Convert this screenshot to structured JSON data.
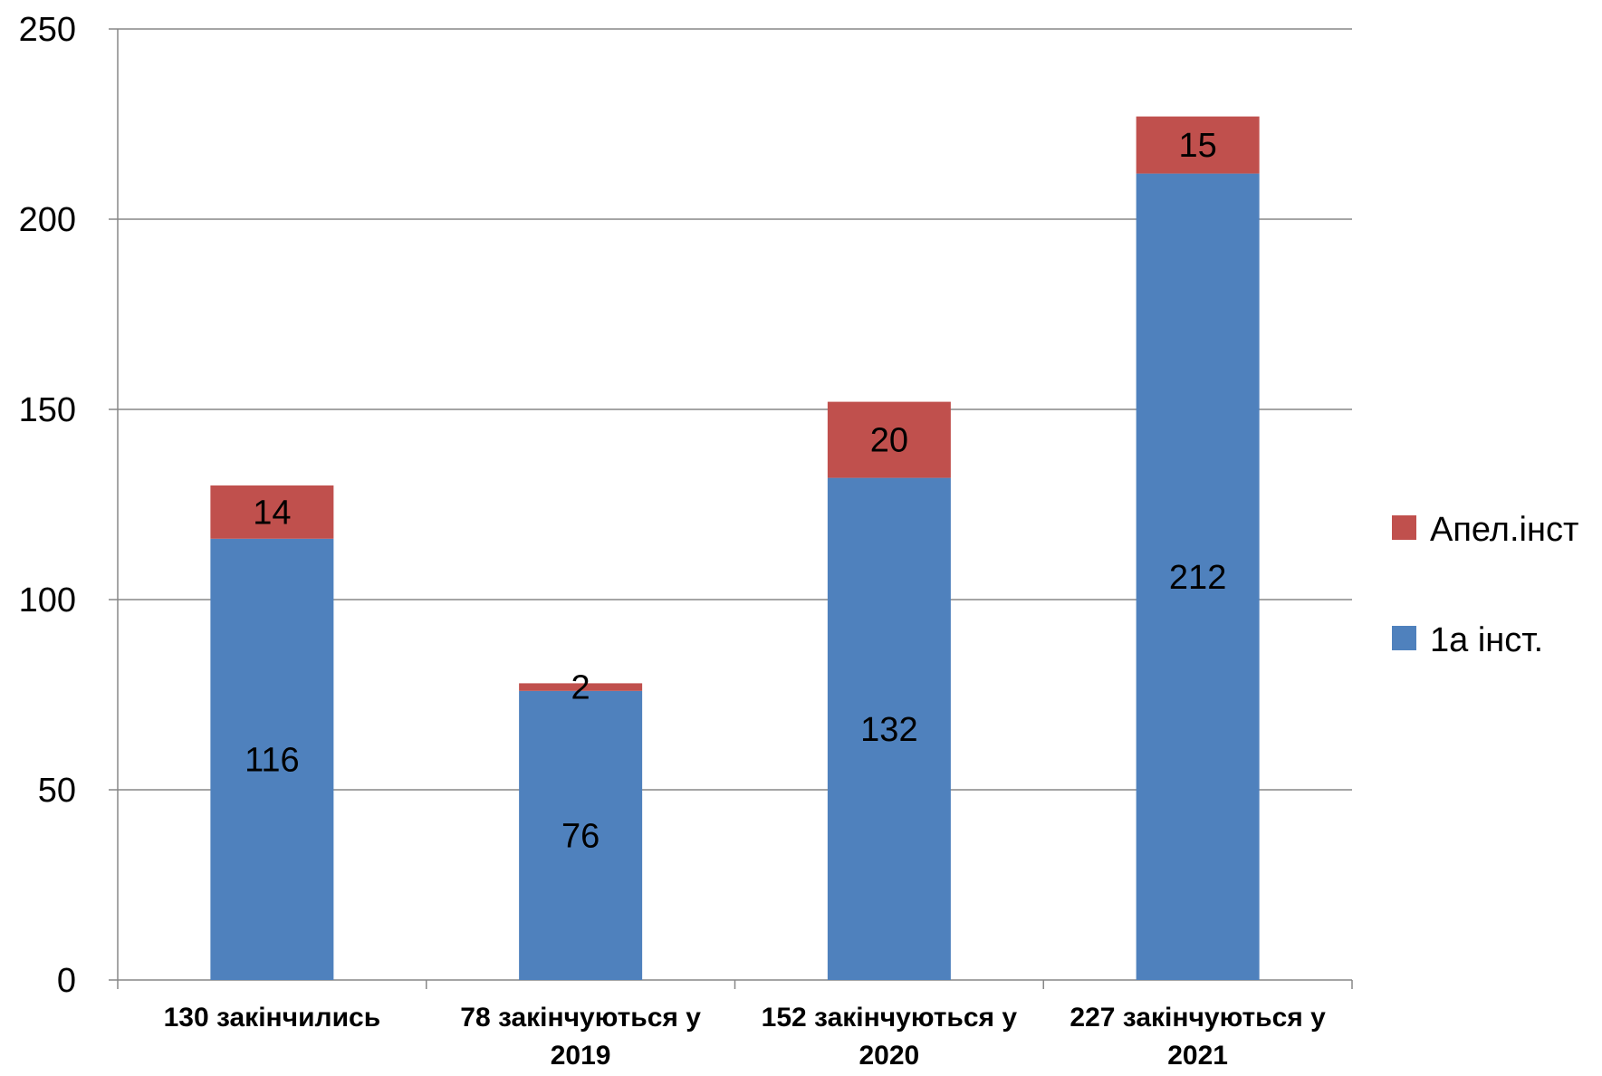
{
  "chart_data": {
    "type": "bar",
    "stacked": true,
    "categories": [
      [
        "130 закінчились"
      ],
      [
        "78 закінчуються у",
        "2019"
      ],
      [
        "152 закінчуються у",
        "2020"
      ],
      [
        "227 закінчуються у",
        "2021"
      ]
    ],
    "series": [
      {
        "name": "1а інст.",
        "values": [
          116,
          76,
          132,
          212
        ],
        "color": "#4F81BD"
      },
      {
        "name": "Апел.інст",
        "values": [
          14,
          2,
          20,
          15
        ],
        "color": "#C0504D"
      }
    ],
    "ylim": [
      0,
      250
    ],
    "yticks": [
      0,
      50,
      100,
      150,
      200,
      250
    ],
    "grid": true,
    "legend": "right"
  }
}
